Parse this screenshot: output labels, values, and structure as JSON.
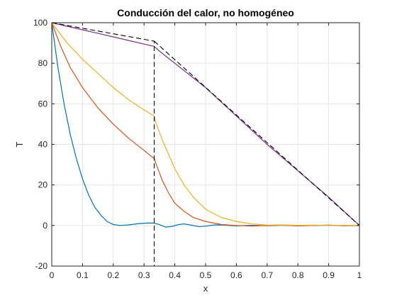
{
  "chart_data": {
    "type": "line",
    "title": "Conducción del calor, no homogéneo",
    "xlabel": "x",
    "ylabel": "T",
    "xlim": [
      0,
      1
    ],
    "ylim": [
      -20,
      100
    ],
    "xticks": [
      0,
      0.1,
      0.2,
      0.3,
      0.4,
      0.5,
      0.6,
      0.7,
      0.8,
      0.9,
      1
    ],
    "yticks": [
      -20,
      0,
      20,
      40,
      60,
      80,
      100
    ],
    "xtick_labels": [
      "0",
      "0.1",
      "0.2",
      "0.3",
      "0.4",
      "0.5",
      "0.6",
      "0.7",
      "0.8",
      "0.9",
      "1"
    ],
    "ytick_labels": [
      "-20",
      "0",
      "20",
      "40",
      "60",
      "80",
      "100"
    ],
    "grid": true,
    "colors": {
      "blue": "#0072BD",
      "orange": "#D95319",
      "yellow": "#EDB120",
      "purple": "#7E2F8E",
      "dashed": "#000000",
      "grid": "#e6e6e6",
      "axis": "#262626"
    },
    "series": [
      {
        "color": "blue",
        "style": "solid",
        "points": [
          [
            0,
            100
          ],
          [
            0.02,
            78
          ],
          [
            0.04,
            60
          ],
          [
            0.06,
            45
          ],
          [
            0.08,
            33
          ],
          [
            0.1,
            23
          ],
          [
            0.12,
            15
          ],
          [
            0.14,
            9
          ],
          [
            0.16,
            5
          ],
          [
            0.18,
            2
          ],
          [
            0.2,
            0.5
          ],
          [
            0.22,
            0
          ],
          [
            0.25,
            0.3
          ],
          [
            0.28,
            0.9
          ],
          [
            0.31,
            1.2
          ],
          [
            0.333,
            1.2
          ],
          [
            0.35,
            0.5
          ],
          [
            0.37,
            -0.8
          ],
          [
            0.39,
            -0.5
          ],
          [
            0.41,
            0.4
          ],
          [
            0.43,
            0.8
          ],
          [
            0.45,
            0.3
          ],
          [
            0.48,
            -0.6
          ],
          [
            0.5,
            -0.3
          ],
          [
            0.53,
            0.3
          ],
          [
            0.56,
            0.2
          ],
          [
            0.6,
            -0.2
          ],
          [
            0.65,
            0.1
          ],
          [
            0.7,
            -0.1
          ],
          [
            0.75,
            0.1
          ],
          [
            0.8,
            -0.1
          ],
          [
            0.85,
            0
          ],
          [
            0.9,
            0.1
          ],
          [
            0.95,
            -0.1
          ],
          [
            1,
            0
          ]
        ]
      },
      {
        "color": "orange",
        "style": "solid",
        "points": [
          [
            0,
            100
          ],
          [
            0.03,
            88
          ],
          [
            0.06,
            78
          ],
          [
            0.1,
            68
          ],
          [
            0.15,
            58
          ],
          [
            0.2,
            50
          ],
          [
            0.25,
            43
          ],
          [
            0.3,
            37
          ],
          [
            0.333,
            33
          ],
          [
            0.34,
            30
          ],
          [
            0.36,
            22
          ],
          [
            0.38,
            16
          ],
          [
            0.4,
            11
          ],
          [
            0.43,
            7
          ],
          [
            0.46,
            4
          ],
          [
            0.5,
            2
          ],
          [
            0.55,
            0.5
          ],
          [
            0.6,
            0
          ],
          [
            0.65,
            -0.3
          ],
          [
            0.7,
            0
          ],
          [
            0.75,
            0.2
          ],
          [
            0.8,
            -0.2
          ],
          [
            0.85,
            0
          ],
          [
            0.9,
            0.2
          ],
          [
            0.95,
            -0.1
          ],
          [
            1,
            0
          ]
        ]
      },
      {
        "color": "yellow",
        "style": "solid",
        "points": [
          [
            0,
            100
          ],
          [
            0.05,
            90
          ],
          [
            0.1,
            82
          ],
          [
            0.15,
            75
          ],
          [
            0.2,
            68
          ],
          [
            0.25,
            62
          ],
          [
            0.3,
            57
          ],
          [
            0.333,
            54
          ],
          [
            0.34,
            50
          ],
          [
            0.36,
            42
          ],
          [
            0.38,
            35
          ],
          [
            0.4,
            28
          ],
          [
            0.43,
            20
          ],
          [
            0.46,
            14
          ],
          [
            0.5,
            8
          ],
          [
            0.55,
            4
          ],
          [
            0.6,
            2
          ],
          [
            0.65,
            0.8
          ],
          [
            0.7,
            0.2
          ],
          [
            0.75,
            0.3
          ],
          [
            0.8,
            0.1
          ],
          [
            0.85,
            0.2
          ],
          [
            0.9,
            0
          ],
          [
            0.95,
            0.1
          ],
          [
            1,
            0
          ]
        ]
      },
      {
        "color": "purple",
        "style": "solid",
        "points": [
          [
            0,
            100
          ],
          [
            0.1,
            96.5
          ],
          [
            0.2,
            93
          ],
          [
            0.333,
            88.3
          ],
          [
            0.35,
            86
          ],
          [
            0.4,
            80
          ],
          [
            0.5,
            68
          ],
          [
            0.6,
            54
          ],
          [
            0.7,
            40
          ],
          [
            0.8,
            27
          ],
          [
            0.9,
            14
          ],
          [
            1,
            0
          ]
        ]
      },
      {
        "color": "dashed",
        "style": "dashed",
        "points": [
          [
            0,
            100
          ],
          [
            0.333,
            90.9
          ],
          [
            0.333,
            -20
          ]
        ]
      },
      {
        "color": "dashed",
        "style": "dashed",
        "points": [
          [
            0.333,
            90.9
          ],
          [
            1,
            0
          ]
        ]
      }
    ]
  }
}
